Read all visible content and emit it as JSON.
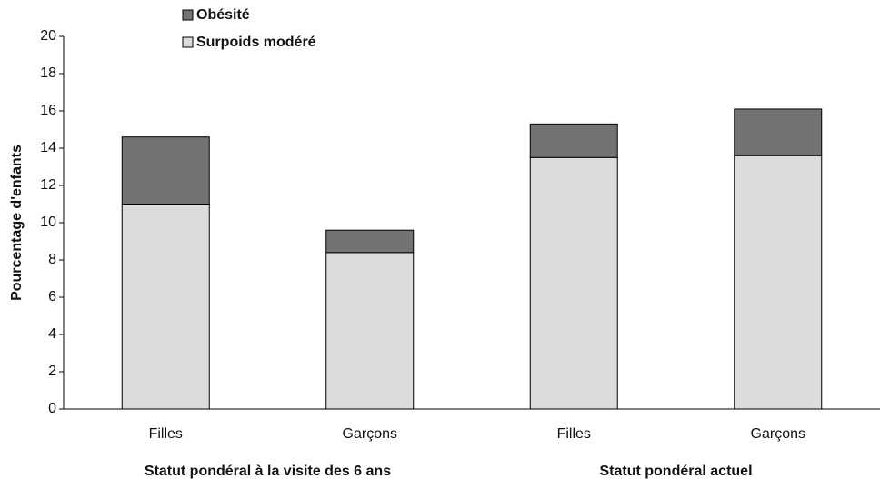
{
  "chart_data": {
    "type": "stacked_bar",
    "y_label": "Pourcentage d'enfants",
    "categories": [
      "Filles",
      "Garçons",
      "Filles",
      "Garçons"
    ],
    "group_labels": [
      "Statut pondéral à la visite des 6 ans",
      "Statut pondéral actuel"
    ],
    "series": [
      {
        "name": "Surpoids modéré",
        "color": "#dcdcdc",
        "values": [
          11.0,
          8.4,
          13.5,
          13.6
        ]
      },
      {
        "name": "Obésité",
        "color": "#737373",
        "values": [
          3.6,
          1.2,
          1.8,
          2.5
        ]
      }
    ],
    "ylim": [
      0,
      20
    ],
    "yticks": [
      0,
      2,
      4,
      6,
      8,
      10,
      12,
      14,
      16,
      18,
      20
    ],
    "grid": false
  }
}
